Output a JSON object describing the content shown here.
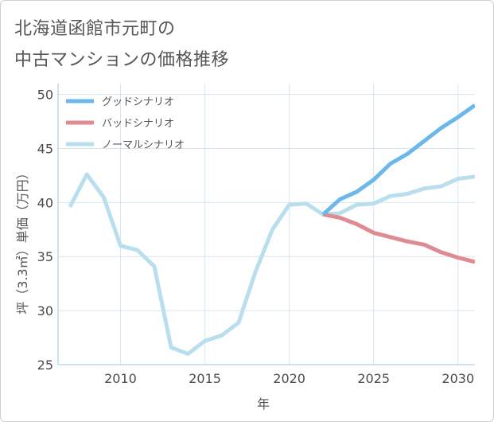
{
  "title_lines": [
    "北海道函館市元町の",
    "中古マンションの価格推移"
  ],
  "colors": {
    "good": "#6cb8ea",
    "bad": "#e08a92",
    "normal": "#b9dfee",
    "grid": "#d5e6ef",
    "axis": "#9ec7dc"
  },
  "chart_data": {
    "type": "line",
    "title": "北海道函館市元町の中古マンションの価格推移",
    "xlabel": "年",
    "ylabel": "坪（3.3㎡）単価（万円）",
    "xlim": [
      2006.3,
      2031
    ],
    "ylim": [
      25,
      51
    ],
    "x_ticks": [
      2010,
      2015,
      2020,
      2025,
      2030
    ],
    "y_ticks": [
      25,
      30,
      35,
      40,
      45,
      50
    ],
    "grid": true,
    "legend_position": "top-left",
    "series": [
      {
        "name": "グッドシナリオ",
        "color": "#6cb8ea",
        "points": [
          [
            2022,
            38.9
          ],
          [
            2023,
            40.3
          ],
          [
            2024,
            41.0
          ],
          [
            2025,
            42.1
          ],
          [
            2026,
            43.6
          ],
          [
            2027,
            44.5
          ],
          [
            2028,
            45.7
          ],
          [
            2029,
            46.9
          ],
          [
            2030,
            47.9
          ],
          [
            2031,
            49.0
          ]
        ]
      },
      {
        "name": "バッドシナリオ",
        "color": "#e08a92",
        "points": [
          [
            2022,
            38.9
          ],
          [
            2023,
            38.6
          ],
          [
            2024,
            38.0
          ],
          [
            2025,
            37.2
          ],
          [
            2026,
            36.8
          ],
          [
            2027,
            36.4
          ],
          [
            2028,
            36.1
          ],
          [
            2029,
            35.4
          ],
          [
            2030,
            34.9
          ],
          [
            2031,
            34.5
          ]
        ]
      },
      {
        "name": "ノーマルシナリオ",
        "color": "#b9dfee",
        "points": [
          [
            2007,
            39.6
          ],
          [
            2008,
            42.6
          ],
          [
            2009,
            40.5
          ],
          [
            2010,
            36.0
          ],
          [
            2011,
            35.6
          ],
          [
            2012,
            34.1
          ],
          [
            2013,
            26.6
          ],
          [
            2014,
            26.0
          ],
          [
            2015,
            27.2
          ],
          [
            2016,
            27.7
          ],
          [
            2017,
            28.9
          ],
          [
            2018,
            33.6
          ],
          [
            2019,
            37.5
          ],
          [
            2020,
            39.8
          ],
          [
            2021,
            39.9
          ],
          [
            2022,
            38.9
          ],
          [
            2023,
            39.0
          ],
          [
            2024,
            39.8
          ],
          [
            2025,
            39.9
          ],
          [
            2026,
            40.6
          ],
          [
            2027,
            40.8
          ],
          [
            2028,
            41.3
          ],
          [
            2029,
            41.5
          ],
          [
            2030,
            42.2
          ],
          [
            2031,
            42.4
          ]
        ]
      }
    ]
  }
}
